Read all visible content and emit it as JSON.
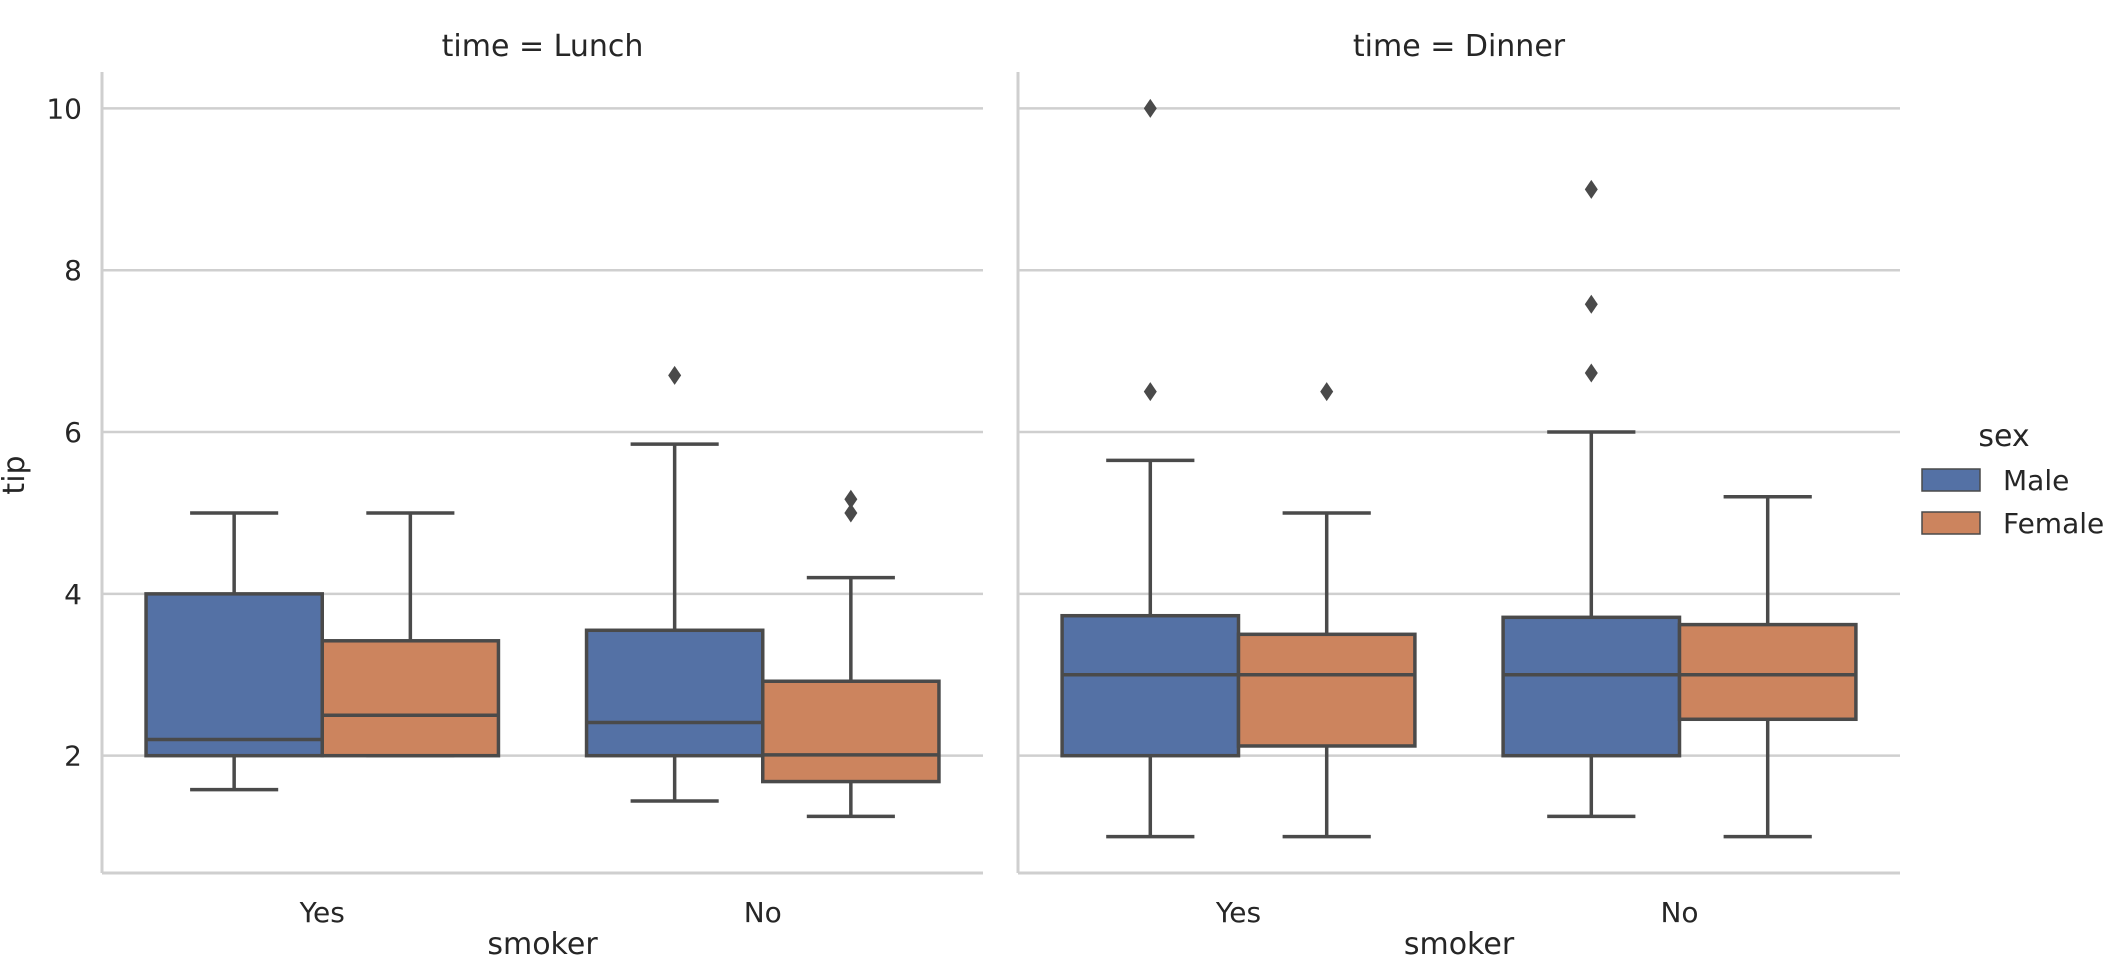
{
  "chart_data": {
    "type": "box",
    "ylabel": "tip",
    "xlabel": "smoker",
    "ylim": [
      0.55,
      10.45
    ],
    "yticks": [
      2,
      4,
      6,
      8,
      10
    ],
    "grid": true,
    "categories": [
      "Yes",
      "No"
    ],
    "legend": {
      "title": "sex",
      "position": "right",
      "entries": [
        {
          "label": "Male",
          "color": "#5471a5"
        },
        {
          "label": "Female",
          "color": "#cc845e"
        }
      ]
    },
    "panels": [
      {
        "title": "time = Lunch",
        "groups": [
          {
            "category": "Yes",
            "boxes": [
              {
                "sex": "Male",
                "whisker_low": 1.58,
                "q1": 2.0,
                "median": 2.2,
                "q3": 4.0,
                "whisker_high": 5.0,
                "outliers": []
              },
              {
                "sex": "Female",
                "whisker_low": 2.0,
                "q1": 2.0,
                "median": 2.5,
                "q3": 3.42,
                "whisker_high": 5.0,
                "outliers": []
              }
            ]
          },
          {
            "category": "No",
            "boxes": [
              {
                "sex": "Male",
                "whisker_low": 1.44,
                "q1": 2.0,
                "median": 2.41,
                "q3": 3.55,
                "whisker_high": 5.85,
                "outliers": [
                  6.7
                ]
              },
              {
                "sex": "Female",
                "whisker_low": 1.25,
                "q1": 1.68,
                "median": 2.01,
                "q3": 2.92,
                "whisker_high": 4.2,
                "outliers": [
                  5.0,
                  5.17
                ]
              }
            ]
          }
        ]
      },
      {
        "title": "time = Dinner",
        "groups": [
          {
            "category": "Yes",
            "boxes": [
              {
                "sex": "Male",
                "whisker_low": 1.0,
                "q1": 2.0,
                "median": 3.0,
                "q3": 3.73,
                "whisker_high": 5.65,
                "outliers": [
                  6.5,
                  10.0
                ]
              },
              {
                "sex": "Female",
                "whisker_low": 1.0,
                "q1": 2.12,
                "median": 3.0,
                "q3": 3.5,
                "whisker_high": 5.0,
                "outliers": [
                  6.5
                ]
              }
            ]
          },
          {
            "category": "No",
            "boxes": [
              {
                "sex": "Male",
                "whisker_low": 1.25,
                "q1": 2.0,
                "median": 3.0,
                "q3": 3.71,
                "whisker_high": 6.0,
                "outliers": [
                  6.73,
                  7.58,
                  9.0
                ]
              },
              {
                "sex": "Female",
                "whisker_low": 1.0,
                "q1": 2.45,
                "median": 3.0,
                "q3": 3.62,
                "whisker_high": 5.2,
                "outliers": []
              }
            ]
          }
        ]
      }
    ]
  }
}
